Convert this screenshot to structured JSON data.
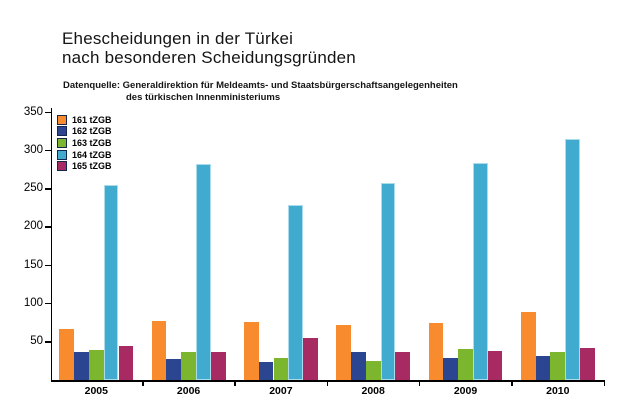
{
  "title": {
    "line1": "Ehescheidungen in der Türkei",
    "line2": "nach besonderen Scheidungsgründen"
  },
  "subtitle": {
    "line1": "Datenquelle: Generaldirektion für Meldeamts- und Staatsbürgerschaftsangelegenheiten",
    "line2": "des türkischen Innenministeriums"
  },
  "chart_data": {
    "type": "bar",
    "categories": [
      "2005",
      "2006",
      "2007",
      "2008",
      "2009",
      "2010"
    ],
    "series": [
      {
        "name": "161 tZGB",
        "color": "#F88B2E",
        "values": [
          66,
          77,
          76,
          72,
          75,
          89
        ]
      },
      {
        "name": "162 tZGB",
        "color": "#2B4590",
        "values": [
          36,
          27,
          24,
          37,
          29,
          31
        ]
      },
      {
        "name": "163 tZGB",
        "color": "#7CB52E",
        "values": [
          39,
          36,
          29,
          25,
          41,
          36
        ]
      },
      {
        "name": "164 tZGB",
        "color": "#41ABCF",
        "edge": "#AADCEC",
        "values": [
          255,
          282,
          229,
          257,
          284,
          315
        ]
      },
      {
        "name": "165 tZGB",
        "color": "#A72A62",
        "values": [
          45,
          37,
          55,
          37,
          38,
          42
        ]
      }
    ],
    "ylim": [
      0,
      350
    ],
    "yticks": [
      50,
      100,
      150,
      200,
      250,
      300,
      350
    ],
    "grid": false,
    "legend_position": "top-left"
  }
}
